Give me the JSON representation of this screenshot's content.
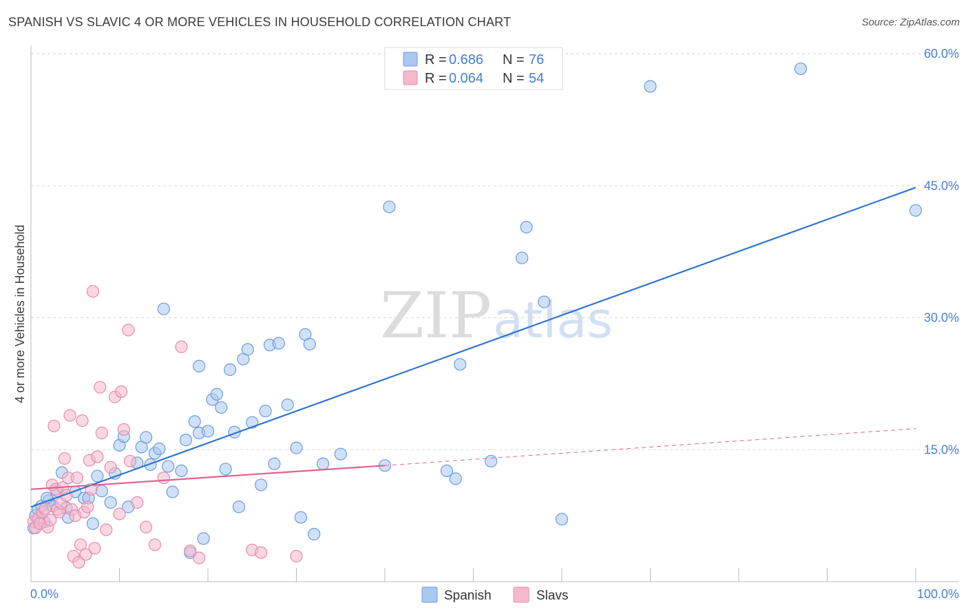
{
  "title": "SPANISH VS SLAVIC 4 OR MORE VEHICLES IN HOUSEHOLD CORRELATION CHART",
  "source": "Source: ZipAtlas.com",
  "watermark": {
    "zip": "ZIP",
    "atlas": "atlas"
  },
  "colors": {
    "spanish_fill": "#aac8f0",
    "spanish_stroke": "#6a9be0",
    "spanish_line": "#2f74d0",
    "slavs_fill": "#f6b8cc",
    "slavs_stroke": "#e88aa8",
    "slavs_line": "#e06090",
    "grid": "#d8d8d8",
    "tick_text": "#4a7fd6"
  },
  "legend": {
    "rows": [
      {
        "r_label": "R =",
        "r_value": "0.686",
        "n_label": "N =",
        "n_value": "76"
      },
      {
        "r_label": "R =",
        "r_value": "0.064",
        "n_label": "N =",
        "n_value": "54"
      }
    ]
  },
  "bottom_legend": {
    "spanish": "Spanish",
    "slavs": "Slavs"
  },
  "chart_data": {
    "type": "scatter",
    "title": "SPANISH VS SLAVIC 4 OR MORE VEHICLES IN HOUSEHOLD CORRELATION CHART",
    "xlabel": "",
    "ylabel": "4 or more Vehicles in Household",
    "xlim": [
      0,
      100
    ],
    "ylim": [
      0,
      62
    ],
    "x_tick_labels": [
      "0.0%",
      "100.0%"
    ],
    "y_ticks": [
      15,
      30,
      45,
      60
    ],
    "y_tick_labels": [
      "15.0%",
      "30.0%",
      "45.0%",
      "60.0%"
    ],
    "grid": true,
    "series": [
      {
        "name": "Spanish",
        "R": 0.686,
        "N": 76,
        "trend": {
          "x": [
            0,
            100
          ],
          "y": [
            8.5,
            44.8
          ],
          "style": "solid"
        },
        "points": [
          [
            0.5,
            7.5
          ],
          [
            0.8,
            8.2
          ],
          [
            1.2,
            8.6
          ],
          [
            1.5,
            6.8
          ],
          [
            2,
            9.2
          ],
          [
            2.5,
            8.6
          ],
          [
            3,
            10.3
          ],
          [
            3.5,
            12.4
          ],
          [
            4,
            8.4
          ],
          [
            4.2,
            7.3
          ],
          [
            5,
            10.2
          ],
          [
            6,
            9.5
          ],
          [
            7,
            6.6
          ],
          [
            7.5,
            12
          ],
          [
            8,
            10.3
          ],
          [
            9,
            9
          ],
          [
            9.5,
            12.3
          ],
          [
            10,
            15.5
          ],
          [
            11,
            8.5
          ],
          [
            10.5,
            16.5
          ],
          [
            12,
            13.5
          ],
          [
            12.5,
            15.3
          ],
          [
            13,
            16.4
          ],
          [
            13.5,
            13.3
          ],
          [
            14,
            14.6
          ],
          [
            14.5,
            15.1
          ],
          [
            15,
            31
          ],
          [
            15.5,
            13.1
          ],
          [
            16,
            10.2
          ],
          [
            17,
            12.6
          ],
          [
            17.5,
            16.1
          ],
          [
            18,
            3.3
          ],
          [
            18.5,
            18.2
          ],
          [
            19,
            16.9
          ],
          [
            19,
            24.5
          ],
          [
            19.5,
            4.9
          ],
          [
            20,
            17.1
          ],
          [
            20.5,
            20.7
          ],
          [
            21,
            21.3
          ],
          [
            21.5,
            19.8
          ],
          [
            22,
            12.8
          ],
          [
            22.5,
            24.1
          ],
          [
            23,
            17
          ],
          [
            23.5,
            8.5
          ],
          [
            24,
            25.3
          ],
          [
            24.5,
            26.4
          ],
          [
            25,
            18.1
          ],
          [
            26,
            11
          ],
          [
            26.5,
            19.4
          ],
          [
            27,
            26.9
          ],
          [
            27.5,
            13.4
          ],
          [
            28,
            27.1
          ],
          [
            29,
            20.1
          ],
          [
            30,
            15.2
          ],
          [
            30.5,
            7.3
          ],
          [
            31,
            28.1
          ],
          [
            31.5,
            27
          ],
          [
            32,
            5.4
          ],
          [
            33,
            13.4
          ],
          [
            35,
            14.5
          ],
          [
            40,
            13.2
          ],
          [
            40.5,
            42.6
          ],
          [
            47,
            12.6
          ],
          [
            48,
            11.7
          ],
          [
            48.5,
            24.7
          ],
          [
            52,
            13.7
          ],
          [
            55.5,
            36.8
          ],
          [
            56,
            40.3
          ],
          [
            58,
            31.8
          ],
          [
            60,
            7.1
          ],
          [
            70,
            56.3
          ],
          [
            87,
            58.3
          ],
          [
            100,
            42.2
          ],
          [
            0.3,
            6.1
          ],
          [
            1.8,
            9.5
          ],
          [
            6.5,
            9.5
          ]
        ]
      },
      {
        "name": "Slavs",
        "R": 0.064,
        "N": 54,
        "trend": {
          "x": [
            0,
            40,
            100
          ],
          "y": [
            10.5,
            13.2,
            17.4
          ],
          "style": "solid-then-dashed"
        },
        "points": [
          [
            0.3,
            6.8
          ],
          [
            0.5,
            6.1
          ],
          [
            0.8,
            7.2
          ],
          [
            1,
            6.6
          ],
          [
            1.3,
            7.9
          ],
          [
            1.6,
            8.3
          ],
          [
            1.9,
            6.2
          ],
          [
            2.2,
            7
          ],
          [
            2.4,
            11
          ],
          [
            2.6,
            17.7
          ],
          [
            2.8,
            10.5
          ],
          [
            3,
            8.2
          ],
          [
            3.2,
            7.9
          ],
          [
            3.4,
            8.9
          ],
          [
            3.6,
            10.7
          ],
          [
            3.8,
            14
          ],
          [
            4,
            9.8
          ],
          [
            4.2,
            11.8
          ],
          [
            4.4,
            18.9
          ],
          [
            4.6,
            8.2
          ],
          [
            4.8,
            2.9
          ],
          [
            5,
            7.5
          ],
          [
            5.2,
            11.8
          ],
          [
            5.4,
            2.2
          ],
          [
            5.6,
            4.2
          ],
          [
            5.8,
            18.3
          ],
          [
            6,
            7.9
          ],
          [
            6.2,
            3.1
          ],
          [
            6.4,
            8.5
          ],
          [
            6.6,
            13.8
          ],
          [
            6.8,
            10.5
          ],
          [
            7,
            33
          ],
          [
            7.2,
            3.8
          ],
          [
            7.5,
            14.2
          ],
          [
            7.8,
            22.1
          ],
          [
            8,
            16.9
          ],
          [
            8.5,
            5.9
          ],
          [
            9,
            13
          ],
          [
            9.5,
            21
          ],
          [
            10,
            7.7
          ],
          [
            10.2,
            21.6
          ],
          [
            10.5,
            17.3
          ],
          [
            11,
            28.6
          ],
          [
            11.2,
            13.7
          ],
          [
            12,
            9
          ],
          [
            13,
            6.2
          ],
          [
            14,
            4.2
          ],
          [
            15,
            11.8
          ],
          [
            17,
            26.7
          ],
          [
            18,
            3.5
          ],
          [
            19,
            2.7
          ],
          [
            25,
            3.6
          ],
          [
            26,
            3.3
          ],
          [
            30,
            2.9
          ]
        ]
      }
    ]
  }
}
